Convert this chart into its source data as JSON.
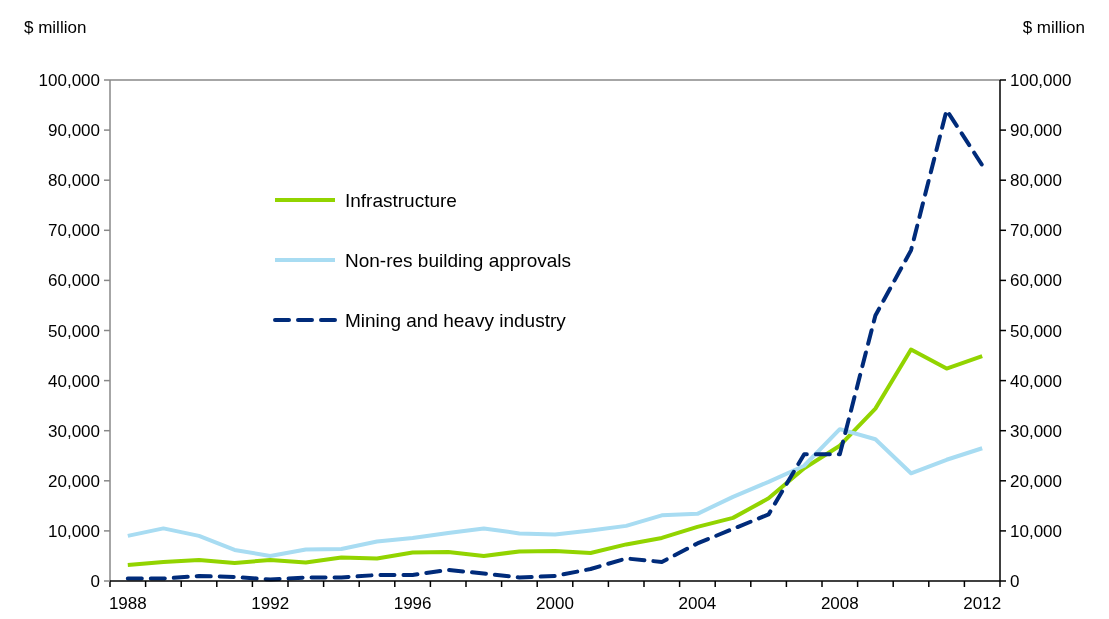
{
  "chart_data": {
    "type": "line",
    "ylabel": "$ million",
    "y2label": "$ million",
    "categories": [
      "1988",
      null,
      null,
      null,
      "1992",
      null,
      null,
      null,
      "1996",
      null,
      null,
      null,
      "2000",
      null,
      null,
      null,
      "2004",
      null,
      null,
      null,
      "2008",
      null,
      null,
      null,
      "2012"
    ],
    "series": [
      {
        "name": "Infrastructure",
        "color": "#92d400",
        "line_style": "solid",
        "values": [
          3200,
          3800,
          4200,
          3600,
          4200,
          3700,
          4700,
          4500,
          5700,
          5800,
          5000,
          5900,
          6000,
          5600,
          7300,
          8600,
          10800,
          12600,
          16500,
          22500,
          27000,
          34400,
          46200,
          42400,
          44900
        ]
      },
      {
        "name": "Non-res building approvals",
        "color": "#a8dcf2",
        "line_style": "solid",
        "values": [
          9000,
          10500,
          9000,
          6200,
          5000,
          6300,
          6400,
          7900,
          8600,
          9600,
          10500,
          9500,
          9300,
          10100,
          11000,
          13100,
          13400,
          16800,
          19800,
          23000,
          30300,
          28300,
          21500,
          24200,
          26500
        ]
      },
      {
        "name": "Mining and heavy industry",
        "color": "#002b7a",
        "line_style": "dashed",
        "values": [
          500,
          500,
          1000,
          800,
          300,
          700,
          700,
          1200,
          1200,
          2200,
          1500,
          700,
          1000,
          2400,
          4500,
          3800,
          7500,
          10400,
          13300,
          25300,
          25300,
          53000,
          66000,
          94000,
          83000
        ]
      }
    ],
    "ylim": [
      0,
      100000
    ],
    "yticks": [
      {
        "value": 0,
        "label": "0"
      },
      {
        "value": 10000,
        "label": "10,000"
      },
      {
        "value": 20000,
        "label": "20,000"
      },
      {
        "value": 30000,
        "label": "30,000"
      },
      {
        "value": 40000,
        "label": "40,000"
      },
      {
        "value": 50000,
        "label": "50,000"
      },
      {
        "value": 60000,
        "label": "60,000"
      },
      {
        "value": 70000,
        "label": "70,000"
      },
      {
        "value": 80000,
        "label": "80,000"
      },
      {
        "value": 90000,
        "label": "90,000"
      },
      {
        "value": 100000,
        "label": "100,000"
      }
    ],
    "y2lim": [
      0,
      100000
    ],
    "y2ticks": [
      {
        "value": 0,
        "label": "0"
      },
      {
        "value": 10000,
        "label": "10,000"
      },
      {
        "value": 20000,
        "label": "20,000"
      },
      {
        "value": 30000,
        "label": "30,000"
      },
      {
        "value": 40000,
        "label": "40,000"
      },
      {
        "value": 50000,
        "label": "50,000"
      },
      {
        "value": 60000,
        "label": "60,000"
      },
      {
        "value": 70000,
        "label": "70,000"
      },
      {
        "value": 80000,
        "label": "80,000"
      },
      {
        "value": 90000,
        "label": "90,000"
      },
      {
        "value": 100000,
        "label": "100,000"
      }
    ],
    "grid": false,
    "legend": "top left",
    "marker": "none"
  }
}
